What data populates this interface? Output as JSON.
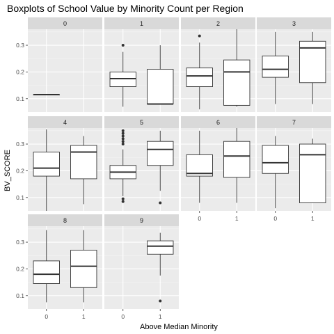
{
  "chart_data": {
    "type": "boxplot",
    "title": "Boxplots of School Value by Minority Count per Region",
    "xlabel": "Above Median Minority",
    "ylabel": "BV_SCORE",
    "categories": [
      "0",
      "1"
    ],
    "y_ticks": [
      0.1,
      0.2,
      0.3
    ],
    "ylim": [
      0.05,
      0.36
    ],
    "grid": true,
    "facet_layout": "4 columns, 3 rows",
    "panels": [
      {
        "label": "0",
        "boxes": [
          {
            "x": "0",
            "min": 0.115,
            "q1": 0.115,
            "median": 0.115,
            "q3": 0.115,
            "max": 0.115,
            "outliers": []
          }
        ]
      },
      {
        "label": "1",
        "boxes": [
          {
            "x": "0",
            "min": 0.07,
            "q1": 0.145,
            "median": 0.175,
            "q3": 0.2,
            "max": 0.275,
            "outliers": [
              0.3
            ]
          },
          {
            "x": "1",
            "min": 0.08,
            "q1": 0.08,
            "median": 0.08,
            "q3": 0.21,
            "max": 0.3,
            "outliers": []
          }
        ]
      },
      {
        "label": "2",
        "boxes": [
          {
            "x": "0",
            "min": 0.06,
            "q1": 0.145,
            "median": 0.185,
            "q3": 0.215,
            "max": 0.31,
            "outliers": [
              0.335
            ]
          },
          {
            "x": "1",
            "min": 0.07,
            "q1": 0.075,
            "median": 0.2,
            "q3": 0.245,
            "max": 0.36,
            "outliers": []
          }
        ]
      },
      {
        "label": "3",
        "boxes": [
          {
            "x": "0",
            "min": 0.08,
            "q1": 0.18,
            "median": 0.21,
            "q3": 0.26,
            "max": 0.35,
            "outliers": []
          },
          {
            "x": "1",
            "min": 0.08,
            "q1": 0.16,
            "median": 0.29,
            "q3": 0.315,
            "max": 0.35,
            "outliers": []
          }
        ]
      },
      {
        "label": "4",
        "boxes": [
          {
            "x": "0",
            "min": 0.05,
            "q1": 0.18,
            "median": 0.21,
            "q3": 0.27,
            "max": 0.355,
            "outliers": []
          },
          {
            "x": "1",
            "min": 0.075,
            "q1": 0.17,
            "median": 0.27,
            "q3": 0.295,
            "max": 0.33,
            "outliers": []
          }
        ]
      },
      {
        "label": "5",
        "boxes": [
          {
            "x": "0",
            "min": 0.105,
            "q1": 0.17,
            "median": 0.195,
            "q3": 0.22,
            "max": 0.28,
            "outliers": [
              0.085,
              0.095,
              0.3,
              0.31,
              0.32,
              0.33,
              0.34,
              0.35
            ]
          },
          {
            "x": "1",
            "min": 0.125,
            "q1": 0.22,
            "median": 0.28,
            "q3": 0.31,
            "max": 0.35,
            "outliers": [
              0.08
            ]
          }
        ]
      },
      {
        "label": "6",
        "boxes": [
          {
            "x": "0",
            "min": 0.08,
            "q1": 0.18,
            "median": 0.19,
            "q3": 0.26,
            "max": 0.35,
            "outliers": []
          },
          {
            "x": "1",
            "min": 0.08,
            "q1": 0.175,
            "median": 0.255,
            "q3": 0.31,
            "max": 0.36,
            "outliers": []
          }
        ]
      },
      {
        "label": "7",
        "boxes": [
          {
            "x": "0",
            "min": 0.06,
            "q1": 0.19,
            "median": 0.23,
            "q3": 0.295,
            "max": 0.33,
            "outliers": []
          },
          {
            "x": "1",
            "min": 0.08,
            "q1": 0.08,
            "median": 0.26,
            "q3": 0.3,
            "max": 0.32,
            "outliers": []
          }
        ]
      },
      {
        "label": "8",
        "boxes": [
          {
            "x": "0",
            "min": 0.075,
            "q1": 0.145,
            "median": 0.18,
            "q3": 0.23,
            "max": 0.345,
            "outliers": []
          },
          {
            "x": "1",
            "min": 0.075,
            "q1": 0.13,
            "median": 0.21,
            "q3": 0.27,
            "max": 0.345,
            "outliers": []
          }
        ]
      },
      {
        "label": "9",
        "boxes": [
          {
            "x": "1",
            "min": 0.175,
            "q1": 0.255,
            "median": 0.285,
            "q3": 0.305,
            "max": 0.335,
            "outliers": [
              0.08
            ]
          }
        ]
      }
    ]
  },
  "colors": {
    "panel_background": "#ebebeb",
    "strip_background": "#d9d9d9",
    "grid_major": "#ffffff",
    "grid_minor": "#f5f5f5",
    "box_fill": "#ffffff",
    "box_stroke": "#333333",
    "tick_text": "#4d4d4d"
  }
}
